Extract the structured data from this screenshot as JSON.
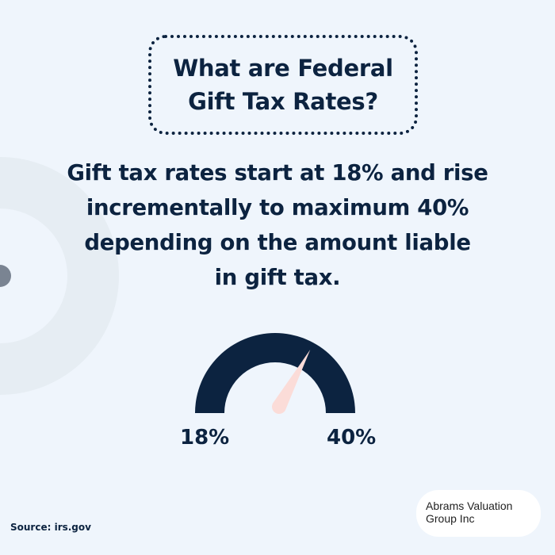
{
  "title": "What are Federal Gift Tax Rates?",
  "title_lines": [
    "What are Federal",
    "Gift Tax Rates?"
  ],
  "body_lines": [
    "Gift tax rates start at 18% and rise",
    "incrementally to maximum 40%",
    "depending on the amount liable",
    "in gift tax."
  ],
  "gauge": {
    "min_label": "18%",
    "max_label": "40%",
    "min": 18,
    "max": 40,
    "needle_value": 32.5,
    "arc_color": "#0c2340",
    "needle_color": "#fbdcd8"
  },
  "source": "Source: irs.gov",
  "logo": {
    "line1": "Abrams Valuation",
    "line2": "Group Inc"
  }
}
